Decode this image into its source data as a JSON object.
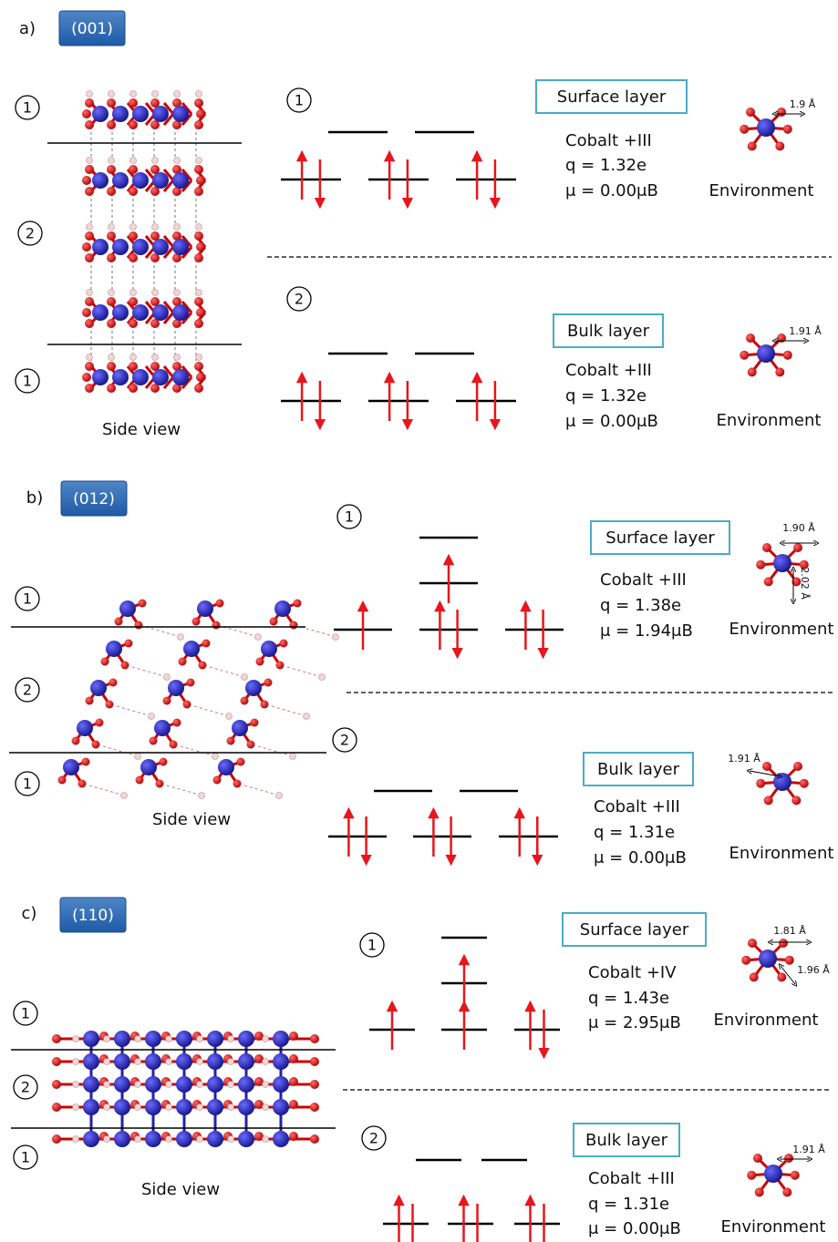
{
  "panels": [
    {
      "label": "a)",
      "facet": "(001)",
      "layer_markers": [
        "1",
        "2",
        "1"
      ],
      "side_view": "Side view",
      "layers": [
        {
          "marker": "1",
          "title": "Surface layer",
          "oxidation": "Cobalt +III",
          "charge": "q = 1.32e",
          "moment": "μ = 0.00μB",
          "environment": "Environment",
          "bonds": [
            "1.9 Å"
          ]
        },
        {
          "marker": "2",
          "title": "Bulk layer",
          "oxidation": "Cobalt +III",
          "charge": "q = 1.32e",
          "moment": "μ = 0.00μB",
          "environment": "Environment",
          "bonds": [
            "1.91 Å"
          ]
        }
      ]
    },
    {
      "label": "b)",
      "facet": "(012)",
      "layer_markers": [
        "1",
        "2",
        "1"
      ],
      "side_view": "Side view",
      "layers": [
        {
          "marker": "1",
          "title": "Surface layer",
          "oxidation": "Cobalt +III",
          "charge": "q = 1.38e",
          "moment": "μ = 1.94μB",
          "environment": "Environment",
          "bonds": [
            "1.90 Å",
            "2.02 Å"
          ]
        },
        {
          "marker": "2",
          "title": "Bulk layer",
          "oxidation": "Cobalt +III",
          "charge": "q = 1.31e",
          "moment": "μ = 0.00μB",
          "environment": "Environment",
          "bonds": [
            "1.91 Å"
          ]
        }
      ]
    },
    {
      "label": "c)",
      "facet": "(110)",
      "layer_markers": [
        "1",
        "2",
        "1"
      ],
      "side_view": "Side view",
      "layers": [
        {
          "marker": "1",
          "title": "Surface layer",
          "oxidation": "Cobalt +IV",
          "charge": "q = 1.43e",
          "moment": "μ = 2.95μB",
          "environment": "Environment",
          "bonds": [
            "1.81 Å",
            "1.96 Å"
          ]
        },
        {
          "marker": "2",
          "title": "Bulk layer",
          "oxidation": "Cobalt +III",
          "charge": "q = 1.31e",
          "moment": "μ = 0.00μB",
          "environment": "Environment",
          "bonds": [
            "1.91 Å"
          ]
        }
      ]
    }
  ]
}
